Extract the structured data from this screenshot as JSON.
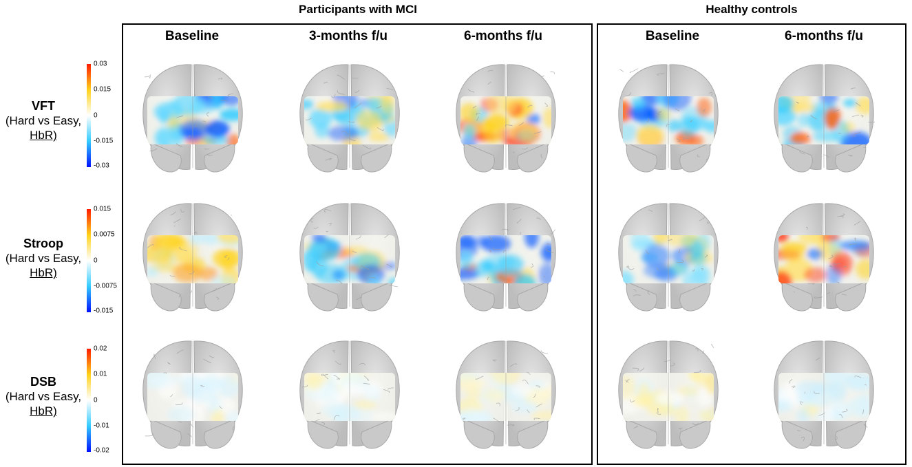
{
  "groups": [
    {
      "title": "Participants with MCI"
    },
    {
      "title": "Healthy controls"
    }
  ],
  "columns": [
    {
      "label": "Baseline"
    },
    {
      "label": "3-months f/u"
    },
    {
      "label": "6-months f/u"
    },
    {
      "label": "Baseline"
    },
    {
      "label": "6-months f/u"
    }
  ],
  "rows": [
    {
      "task": "VFT",
      "line2": "(Hard vs Easy,",
      "line3": "HbR)",
      "ticks": [
        "0.03",
        "0.015",
        "0",
        "-0.015",
        "-0.03"
      ]
    },
    {
      "task": "Stroop",
      "line2": "(Hard vs Easy,",
      "line3": "HbR)",
      "ticks": [
        "0.015",
        "0.0075",
        "0",
        "-0.0075",
        "-0.015"
      ]
    },
    {
      "task": "DSB",
      "line2": "(Hard vs Easy,",
      "line3": "HbR)",
      "ticks": [
        "0.02",
        "0.01",
        "0",
        "-0.01",
        "-0.02"
      ]
    }
  ],
  "colors": {
    "positive_max": "#ff1a00",
    "positive_mid": "#ffd21a",
    "zero": "#ffffff",
    "negative_mid": "#33ccff",
    "negative_max": "#0010ff",
    "brain": "#d3d3d3",
    "frame": "#000000"
  },
  "maps": [
    [
      {
        "tone": "mixed-blue",
        "intensity": 0.85
      },
      {
        "tone": "mixed-yellow-blue",
        "intensity": 0.75
      },
      {
        "tone": "mixed-yellow",
        "intensity": 0.75
      },
      {
        "tone": "mixed-blue",
        "intensity": 0.9
      },
      {
        "tone": "mixed-blue",
        "intensity": 0.9
      }
    ],
    [
      {
        "tone": "yellow",
        "intensity": 0.75
      },
      {
        "tone": "mixed-blue",
        "intensity": 0.5
      },
      {
        "tone": "mixed-blue",
        "intensity": 0.7
      },
      {
        "tone": "blue",
        "intensity": 0.75
      },
      {
        "tone": "mixed-yellow",
        "intensity": 0.75
      }
    ],
    [
      {
        "tone": "faint",
        "intensity": 0.35
      },
      {
        "tone": "faint",
        "intensity": 0.35
      },
      {
        "tone": "faint",
        "intensity": 0.35
      },
      {
        "tone": "faint-yellow",
        "intensity": 0.45
      },
      {
        "tone": "faint-blue",
        "intensity": 0.4
      }
    ]
  ]
}
